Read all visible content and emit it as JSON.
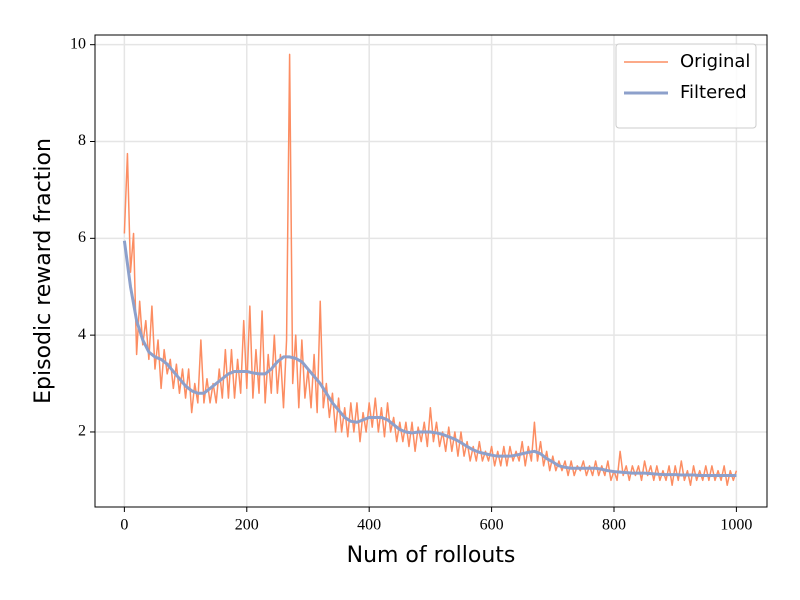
{
  "chart_data": {
    "type": "line",
    "xlabel": "Num of rollouts",
    "ylabel": "Episodic reward fraction",
    "xlim": [
      -48,
      1050
    ],
    "ylim": [
      0.45,
      10.2
    ],
    "xticks": [
      0,
      200,
      400,
      600,
      800,
      1000
    ],
    "yticks": [
      2,
      4,
      6,
      8,
      10
    ],
    "grid": true,
    "legend": "upper right",
    "series": [
      {
        "name": "Original",
        "color": "#fc8d62",
        "width": 1.5,
        "x": [
          0,
          5,
          10,
          15,
          20,
          25,
          30,
          35,
          40,
          45,
          50,
          55,
          60,
          65,
          70,
          75,
          80,
          85,
          90,
          95,
          100,
          105,
          110,
          115,
          120,
          125,
          130,
          135,
          140,
          145,
          150,
          155,
          160,
          165,
          170,
          175,
          180,
          185,
          190,
          195,
          200,
          205,
          210,
          215,
          220,
          225,
          230,
          235,
          240,
          245,
          250,
          255,
          260,
          265,
          270,
          275,
          280,
          285,
          290,
          295,
          300,
          305,
          310,
          315,
          320,
          325,
          330,
          335,
          340,
          345,
          350,
          355,
          360,
          365,
          370,
          375,
          380,
          385,
          390,
          395,
          400,
          405,
          410,
          415,
          420,
          425,
          430,
          435,
          440,
          445,
          450,
          455,
          460,
          465,
          470,
          475,
          480,
          485,
          490,
          495,
          500,
          505,
          510,
          515,
          520,
          525,
          530,
          535,
          540,
          545,
          550,
          555,
          560,
          565,
          570,
          575,
          580,
          585,
          590,
          595,
          600,
          605,
          610,
          615,
          620,
          625,
          630,
          635,
          640,
          645,
          650,
          655,
          660,
          665,
          670,
          675,
          680,
          685,
          690,
          695,
          700,
          705,
          710,
          715,
          720,
          725,
          730,
          735,
          740,
          745,
          750,
          755,
          760,
          765,
          770,
          775,
          780,
          785,
          790,
          795,
          800,
          805,
          810,
          815,
          820,
          825,
          830,
          835,
          840,
          845,
          850,
          855,
          860,
          865,
          870,
          875,
          880,
          885,
          890,
          895,
          900,
          905,
          910,
          915,
          920,
          925,
          930,
          935,
          940,
          945,
          950,
          955,
          960,
          965,
          970,
          975,
          980,
          985,
          990,
          995,
          1000
        ],
        "values": [
          6.1,
          7.75,
          5.3,
          6.1,
          3.6,
          4.7,
          3.8,
          4.3,
          3.5,
          4.6,
          3.3,
          3.9,
          2.9,
          3.7,
          3.2,
          3.5,
          2.9,
          3.4,
          2.8,
          3.3,
          2.7,
          3.3,
          2.4,
          3.0,
          2.6,
          3.9,
          2.6,
          3.1,
          2.6,
          3.0,
          2.6,
          3.3,
          2.7,
          3.7,
          2.7,
          3.7,
          2.7,
          3.5,
          2.8,
          4.3,
          2.9,
          4.6,
          2.7,
          3.7,
          2.8,
          4.5,
          2.6,
          3.6,
          2.8,
          4.0,
          2.8,
          3.6,
          2.5,
          3.9,
          9.8,
          3.0,
          4.0,
          2.5,
          3.9,
          2.7,
          3.3,
          2.5,
          3.6,
          2.4,
          4.7,
          2.5,
          3.0,
          2.3,
          2.8,
          2.0,
          2.7,
          2.0,
          2.5,
          1.9,
          2.6,
          2.0,
          2.6,
          1.8,
          2.4,
          2.0,
          2.6,
          2.1,
          2.7,
          2.0,
          2.5,
          1.9,
          2.6,
          2.0,
          2.3,
          1.8,
          2.2,
          1.8,
          2.2,
          1.7,
          2.2,
          1.6,
          2.1,
          1.8,
          2.2,
          1.7,
          2.5,
          1.8,
          2.2,
          1.7,
          2.0,
          1.6,
          2.1,
          1.6,
          2.0,
          1.5,
          2.0,
          1.5,
          1.8,
          1.4,
          1.7,
          1.4,
          1.8,
          1.4,
          1.6,
          1.4,
          1.7,
          1.3,
          1.6,
          1.3,
          1.7,
          1.3,
          1.7,
          1.4,
          1.6,
          1.4,
          1.8,
          1.3,
          1.7,
          1.4,
          2.2,
          1.4,
          1.8,
          1.3,
          1.6,
          1.2,
          1.5,
          1.2,
          1.4,
          1.2,
          1.4,
          1.1,
          1.4,
          1.1,
          1.3,
          1.2,
          1.4,
          1.1,
          1.3,
          1.1,
          1.4,
          1.1,
          1.3,
          1.1,
          1.4,
          1.0,
          1.2,
          1.0,
          1.6,
          1.1,
          1.3,
          1.0,
          1.3,
          1.1,
          1.3,
          1.0,
          1.4,
          1.1,
          1.3,
          1.0,
          1.3,
          1.0,
          1.2,
          1.0,
          1.3,
          0.9,
          1.3,
          1.0,
          1.4,
          1.0,
          1.2,
          0.9,
          1.3,
          1.0,
          1.2,
          1.0,
          1.3,
          1.0,
          1.3,
          1.0,
          1.2,
          1.0,
          1.3,
          0.9,
          1.2,
          1.0,
          1.2
        ]
      },
      {
        "name": "Filtered",
        "color": "#8da0cb",
        "width": 3,
        "x": [
          0,
          10,
          20,
          30,
          40,
          50,
          60,
          70,
          80,
          90,
          100,
          110,
          120,
          130,
          140,
          150,
          160,
          170,
          180,
          190,
          200,
          210,
          220,
          230,
          240,
          250,
          260,
          270,
          280,
          290,
          300,
          310,
          320,
          330,
          340,
          350,
          360,
          370,
          380,
          390,
          400,
          410,
          420,
          430,
          440,
          450,
          460,
          470,
          480,
          490,
          500,
          510,
          520,
          530,
          540,
          550,
          560,
          570,
          580,
          590,
          600,
          610,
          620,
          630,
          640,
          650,
          660,
          670,
          680,
          690,
          700,
          710,
          720,
          730,
          740,
          750,
          760,
          770,
          780,
          790,
          800,
          810,
          820,
          830,
          840,
          850,
          860,
          870,
          880,
          890,
          900,
          910,
          920,
          930,
          940,
          950,
          960,
          970,
          980,
          990,
          1000
        ],
        "values": [
          5.95,
          5.0,
          4.3,
          3.9,
          3.65,
          3.55,
          3.5,
          3.4,
          3.25,
          3.1,
          2.95,
          2.85,
          2.8,
          2.8,
          2.9,
          3.0,
          3.1,
          3.2,
          3.25,
          3.25,
          3.25,
          3.22,
          3.2,
          3.2,
          3.3,
          3.45,
          3.55,
          3.55,
          3.52,
          3.45,
          3.3,
          3.15,
          3.0,
          2.8,
          2.6,
          2.45,
          2.3,
          2.22,
          2.2,
          2.25,
          2.3,
          2.3,
          2.3,
          2.25,
          2.15,
          2.05,
          2.0,
          1.98,
          2.0,
          2.0,
          2.0,
          1.98,
          1.95,
          1.9,
          1.85,
          1.78,
          1.7,
          1.63,
          1.58,
          1.55,
          1.52,
          1.5,
          1.5,
          1.5,
          1.52,
          1.55,
          1.58,
          1.6,
          1.55,
          1.45,
          1.38,
          1.3,
          1.27,
          1.25,
          1.25,
          1.25,
          1.25,
          1.25,
          1.23,
          1.2,
          1.18,
          1.17,
          1.16,
          1.15,
          1.15,
          1.15,
          1.14,
          1.13,
          1.12,
          1.12,
          1.12,
          1.11,
          1.11,
          1.11,
          1.1,
          1.1,
          1.1,
          1.1,
          1.1,
          1.1,
          1.1
        ]
      }
    ]
  }
}
